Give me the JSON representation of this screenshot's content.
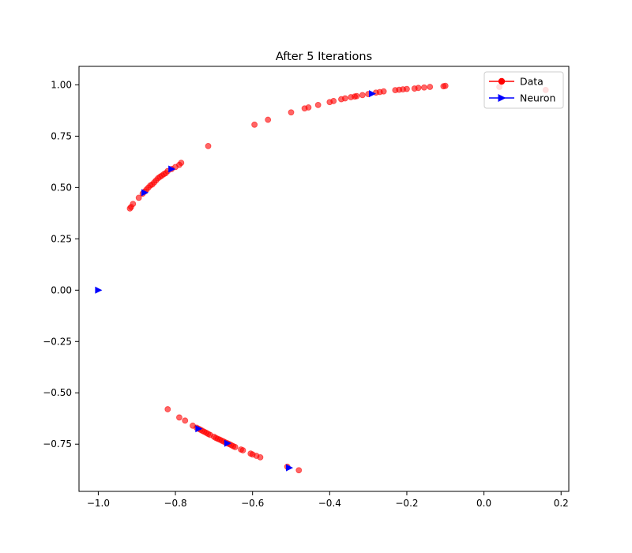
{
  "chart_data": {
    "type": "scatter",
    "title": "After 5 Iterations",
    "xlabel": "",
    "ylabel": "",
    "xlim": [
      -1.05,
      0.22
    ],
    "ylim": [
      -0.98,
      1.09
    ],
    "xticks": [
      -1.0,
      -0.8,
      -0.6,
      -0.4,
      -0.2,
      0.0,
      0.2
    ],
    "xtick_labels": [
      "−1.0",
      "−0.8",
      "−0.6",
      "−0.4",
      "−0.2",
      "0.0",
      "0.2"
    ],
    "yticks": [
      -0.75,
      -0.5,
      -0.25,
      0.0,
      0.25,
      0.5,
      0.75,
      1.0
    ],
    "ytick_labels": [
      "−0.75",
      "−0.50",
      "−0.25",
      "0.00",
      "0.25",
      "0.50",
      "0.75",
      "1.00"
    ],
    "grid": false,
    "legend": {
      "placement": "top-right",
      "entries": [
        {
          "label": "Data",
          "color": "#ff0000",
          "marker": "circle"
        },
        {
          "label": "Neuron",
          "color": "#0000ff",
          "marker": "triangle-right"
        }
      ]
    },
    "series": [
      {
        "name": "Data",
        "color": "#ff0000",
        "alpha": 0.6,
        "marker": "circle",
        "points": [
          [
            0.04,
            0.99
          ],
          [
            0.16,
            0.975
          ],
          [
            -0.1,
            0.995
          ],
          [
            -0.105,
            0.993
          ],
          [
            -0.14,
            0.99
          ],
          [
            -0.155,
            0.987
          ],
          [
            -0.17,
            0.985
          ],
          [
            -0.18,
            0.982
          ],
          [
            -0.2,
            0.98
          ],
          [
            -0.21,
            0.978
          ],
          [
            -0.22,
            0.976
          ],
          [
            -0.23,
            0.974
          ],
          [
            -0.26,
            0.968
          ],
          [
            -0.27,
            0.965
          ],
          [
            -0.28,
            0.962
          ],
          [
            -0.3,
            0.955
          ],
          [
            -0.315,
            0.95
          ],
          [
            -0.33,
            0.945
          ],
          [
            -0.335,
            0.943
          ],
          [
            -0.345,
            0.94
          ],
          [
            -0.36,
            0.934
          ],
          [
            -0.37,
            0.93
          ],
          [
            -0.39,
            0.921
          ],
          [
            -0.4,
            0.916
          ],
          [
            -0.43,
            0.902
          ],
          [
            -0.455,
            0.89
          ],
          [
            -0.465,
            0.885
          ],
          [
            -0.5,
            0.866
          ],
          [
            -0.56,
            0.83
          ],
          [
            -0.595,
            0.806
          ],
          [
            -0.715,
            0.702
          ],
          [
            -0.785,
            0.62
          ],
          [
            -0.79,
            0.61
          ],
          [
            -0.8,
            0.6
          ],
          [
            -0.81,
            0.59
          ],
          [
            -0.82,
            0.58
          ],
          [
            -0.825,
            0.57
          ],
          [
            -0.83,
            0.565
          ],
          [
            -0.835,
            0.558
          ],
          [
            -0.84,
            0.552
          ],
          [
            -0.845,
            0.545
          ],
          [
            -0.85,
            0.535
          ],
          [
            -0.855,
            0.525
          ],
          [
            -0.86,
            0.515
          ],
          [
            -0.865,
            0.51
          ],
          [
            -0.87,
            0.5
          ],
          [
            -0.875,
            0.49
          ],
          [
            -0.88,
            0.48
          ],
          [
            -0.885,
            0.47
          ],
          [
            -0.895,
            0.45
          ],
          [
            -0.91,
            0.42
          ],
          [
            -0.915,
            0.405
          ],
          [
            -0.918,
            0.398
          ],
          [
            -0.82,
            -0.58
          ],
          [
            -0.79,
            -0.62
          ],
          [
            -0.775,
            -0.635
          ],
          [
            -0.755,
            -0.66
          ],
          [
            -0.745,
            -0.67
          ],
          [
            -0.74,
            -0.675
          ],
          [
            -0.735,
            -0.68
          ],
          [
            -0.73,
            -0.685
          ],
          [
            -0.725,
            -0.69
          ],
          [
            -0.72,
            -0.695
          ],
          [
            -0.715,
            -0.7
          ],
          [
            -0.71,
            -0.705
          ],
          [
            -0.7,
            -0.714
          ],
          [
            -0.695,
            -0.72
          ],
          [
            -0.69,
            -0.724
          ],
          [
            -0.685,
            -0.728
          ],
          [
            -0.68,
            -0.733
          ],
          [
            -0.675,
            -0.737
          ],
          [
            -0.67,
            -0.742
          ],
          [
            -0.665,
            -0.746
          ],
          [
            -0.66,
            -0.75
          ],
          [
            -0.655,
            -0.755
          ],
          [
            -0.65,
            -0.76
          ],
          [
            -0.645,
            -0.764
          ],
          [
            -0.63,
            -0.776
          ],
          [
            -0.625,
            -0.78
          ],
          [
            -0.605,
            -0.796
          ],
          [
            -0.6,
            -0.8
          ],
          [
            -0.59,
            -0.807
          ],
          [
            -0.58,
            -0.814
          ],
          [
            -0.51,
            -0.86
          ],
          [
            -0.48,
            -0.877
          ]
        ]
      },
      {
        "name": "Neuron",
        "color": "#0000ff",
        "alpha": 1.0,
        "marker": "triangle-right",
        "points": [
          [
            -1.0,
            0.0
          ],
          [
            -0.29,
            0.957
          ],
          [
            -0.81,
            0.59
          ],
          [
            -0.88,
            0.475
          ],
          [
            -0.74,
            -0.675
          ],
          [
            -0.665,
            -0.746
          ],
          [
            -0.505,
            -0.865
          ]
        ]
      }
    ]
  }
}
